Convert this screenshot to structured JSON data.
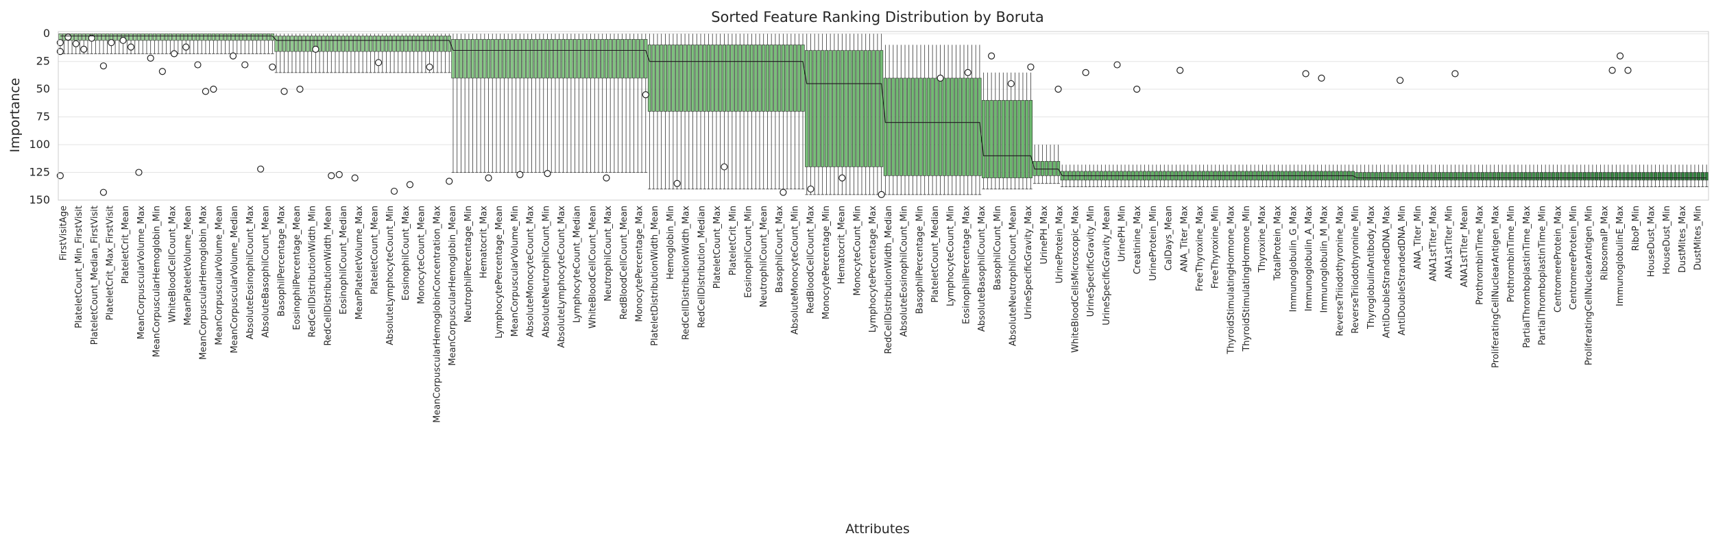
{
  "chart_data": {
    "type": "box",
    "title": "Sorted Feature Ranking Distribution by Boruta",
    "xlabel": "Attributes",
    "ylabel": "Importance",
    "ylim": [
      150,
      -2
    ],
    "y_inverted": true,
    "yticks": [
      0,
      25,
      50,
      75,
      100,
      125,
      150
    ],
    "grid": true,
    "n_features": 420,
    "colors": {
      "box_light": "#9ed09a",
      "box_mid": "#6cb86e",
      "box_dark": "#2e7d3a",
      "median_line": "#1a1a1a",
      "grid": "#e3e3e3"
    },
    "categories": [
      "FirstVisitAge",
      "PlateletCount_Min_FirstVisit",
      "PlateletCount_Median_FirstVisit",
      "PlateletCrit_Max_FirstVisit",
      "PlateletCrit_Mean",
      "MeanCorpuscularVolume_Max",
      "MeanCorpuscularHemoglobin_Min",
      "WhiteBloodCellCount_Max",
      "MeanPlateletVolume_Mean",
      "MeanCorpuscularHemoglobin_Max",
      "MeanCorpuscularVolume_Mean",
      "MeanCorpuscularVolume_Median",
      "AbsoluteEosinophilCount_Max",
      "AbsoluteBasophilCount_Mean",
      "BasophilPercentage_Max",
      "EosinophilPercentage_Mean",
      "RedCellDistributionWidth_Min",
      "RedCellDistributionWidth_Mean",
      "EosinophilCount_Median",
      "MeanPlateletVolume_Max",
      "PlateletCount_Mean",
      "AbsoluteLymphocyteCount_Min",
      "EosinophilCount_Max",
      "MonocyteCount_Mean",
      "MeanCorpuscularHemoglobinConcentration_Max",
      "MeanCorpuscularHemoglobin_Mean",
      "NeutrophilPercentage_Min",
      "Hematocrit_Max",
      "LymphocytePercentage_Mean",
      "MeanCorpuscularVolume_Min",
      "AbsoluteMonocyteCount_Max",
      "AbsoluteNeutrophilCount_Min",
      "AbsoluteLymphocyteCount_Max",
      "LymphocyteCount_Median",
      "WhiteBloodCellCount_Mean",
      "NeutrophilCount_Max",
      "RedBloodCellCount_Mean",
      "MonocytePercentage_Max",
      "PlateletDistributionWidth_Mean",
      "Hemoglobin_Min",
      "RedCellDistributionWidth_Max",
      "RedCellDistribution_Median",
      "PlateletCount_Max",
      "PlateletCrit_Min",
      "EosinophilCount_Min",
      "NeutrophilCount_Mean",
      "BasophilCount_Max",
      "AbsoluteMonocyteCount_Min",
      "RedBloodCellCount_Max",
      "MonocytePercentage_Min",
      "Hematocrit_Mean",
      "MonocyteCount_Min",
      "LymphocytePercentage_Max",
      "RedCellDistributionWidth_Median",
      "AbsoluteEosinophilCount_Min",
      "BasophilPercentage_Min",
      "PlateletCount_Median",
      "LymphocyteCount_Min",
      "EosinophilPercentage_Max",
      "AbsoluteBasophilCount_Max",
      "BasophilCount_Min",
      "AbsoluteNeutrophilCount_Mean",
      "UrineSpecificGravity_Max",
      "UrinePH_Max",
      "UrineProtein_Max",
      "WhiteBloodCellsMicroscopic_Max",
      "UrineSpecificGravity_Min",
      "UrineSpecificGravity_Mean",
      "UrinePH_Min",
      "Creatinine_Max",
      "UrineProtein_Min",
      "CalDays_Mean",
      "ANA_Titer_Max",
      "FreeThyroxine_Max",
      "FreeThyroxine_Min",
      "ThyroidStimulatingHormone_Max",
      "ThyroidStimulatingHormone_Min",
      "Thyroxine_Max",
      "TotalProtein_Max",
      "Immunoglobulin_G_Max",
      "Immunoglobulin_A_Max",
      "Immunoglobulin_M_Max",
      "ReverseTriiodothyronine_Max",
      "ReverseTriiodothyronine_Min",
      "ThyroglobulinAntibody_Max",
      "AntiDoubleStrandedDNA_Max",
      "AntiDoubleStrandedDNA_Min",
      "ANA_Titer_Min",
      "ANA1stTiter_Max",
      "ANA1stTiter_Min",
      "ANA1stTiter_Mean",
      "ProthrombinTime_Max",
      "ProliferatingCellNuclearAntigen_Max",
      "ProthrombinTime_Min",
      "PartialThromboplastinTime_Max",
      "PartialThromboplastinTime_Min",
      "CentromereProtein_Max",
      "CentromereProtein_Min",
      "ProliferatingCellNuclearAntigen_Min",
      "RibosomalP_Max",
      "ImmunoglobulinE_Max",
      "RiboP_Min",
      "HouseDust_Max",
      "HouseDust_Min",
      "DustMites_Max",
      "DustMites_Min"
    ],
    "shown_category_count": 106,
    "groups": [
      {
        "range": [
          1,
          55
        ],
        "median": 2,
        "q1": 0,
        "q3": 6,
        "whisker_low": 0,
        "whisker_high": 18
      },
      {
        "range": [
          56,
          100
        ],
        "median": 6,
        "q1": 2,
        "q3": 16,
        "whisker_low": 0,
        "whisker_high": 35
      },
      {
        "range": [
          101,
          150
        ],
        "median": 15,
        "q1": 5,
        "q3": 40,
        "whisker_low": 0,
        "whisker_high": 125
      },
      {
        "range": [
          151,
          190
        ],
        "median": 25,
        "q1": 10,
        "q3": 70,
        "whisker_low": 0,
        "whisker_high": 140
      },
      {
        "range": [
          191,
          210
        ],
        "median": 45,
        "q1": 15,
        "q3": 120,
        "whisker_low": 0,
        "whisker_high": 145
      },
      {
        "range": [
          211,
          235
        ],
        "median": 80,
        "q1": 40,
        "q3": 128,
        "whisker_low": 10,
        "whisker_high": 145
      },
      {
        "range": [
          236,
          248
        ],
        "median": 110,
        "q1": 60,
        "q3": 130,
        "whisker_low": 35,
        "whisker_high": 140
      },
      {
        "range": [
          249,
          255
        ],
        "median": 122,
        "q1": 115,
        "q3": 128,
        "whisker_low": 100,
        "whisker_high": 135
      },
      {
        "range": [
          256,
          330
        ],
        "median": 128,
        "q1": 124,
        "q3": 132,
        "whisker_low": 118,
        "whisker_high": 138
      },
      {
        "range": [
          331,
          420
        ],
        "median": 130,
        "q1": 125,
        "q3": 132,
        "whisker_low": 118,
        "whisker_high": 138
      }
    ],
    "outliers": [
      [
        1,
        8
      ],
      [
        1,
        16
      ],
      [
        1,
        128
      ],
      [
        3,
        3
      ],
      [
        5,
        9
      ],
      [
        7,
        14
      ],
      [
        9,
        4
      ],
      [
        12,
        29
      ],
      [
        12,
        143
      ],
      [
        14,
        8
      ],
      [
        17,
        6
      ],
      [
        19,
        12
      ],
      [
        21,
        125
      ],
      [
        24,
        22
      ],
      [
        27,
        34
      ],
      [
        30,
        18
      ],
      [
        33,
        12
      ],
      [
        36,
        28
      ],
      [
        38,
        52
      ],
      [
        40,
        50
      ],
      [
        45,
        20
      ],
      [
        48,
        28
      ],
      [
        52,
        122
      ],
      [
        55,
        30
      ],
      [
        58,
        52
      ],
      [
        62,
        50
      ],
      [
        66,
        14
      ],
      [
        70,
        128
      ],
      [
        72,
        127
      ],
      [
        76,
        130
      ],
      [
        82,
        26
      ],
      [
        86,
        142
      ],
      [
        90,
        136
      ],
      [
        95,
        30
      ],
      [
        100,
        133
      ],
      [
        110,
        130
      ],
      [
        118,
        127
      ],
      [
        125,
        126
      ],
      [
        140,
        130
      ],
      [
        150,
        55
      ],
      [
        158,
        135
      ],
      [
        170,
        120
      ],
      [
        185,
        143
      ],
      [
        192,
        140
      ],
      [
        200,
        130
      ],
      [
        210,
        145
      ],
      [
        225,
        40
      ],
      [
        232,
        35
      ],
      [
        238,
        20
      ],
      [
        243,
        45
      ],
      [
        248,
        30
      ],
      [
        255,
        50
      ],
      [
        262,
        35
      ],
      [
        270,
        28
      ],
      [
        275,
        50
      ],
      [
        286,
        33
      ],
      [
        318,
        36
      ],
      [
        322,
        40
      ],
      [
        342,
        42
      ],
      [
        356,
        36
      ],
      [
        396,
        33
      ],
      [
        398,
        20
      ],
      [
        400,
        33
      ]
    ]
  }
}
